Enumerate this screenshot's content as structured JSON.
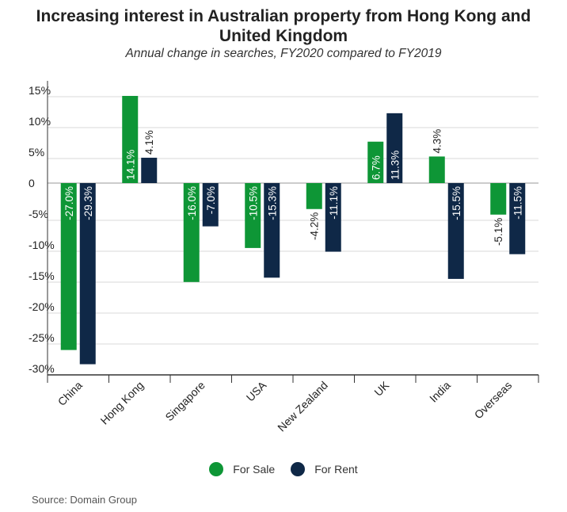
{
  "title_line1": "Increasing interest in Australian property from Hong Kong and",
  "title_line2": "United Kingdom",
  "subtitle": "Annual change in searches, FY2020 compared to FY2019",
  "source": "Source: Domain Group",
  "colors": {
    "for_sale": "#0e9636",
    "for_rent": "#0f2847",
    "grid": "#d9d9d9",
    "axis": "#333333"
  },
  "chart_data": {
    "type": "bar",
    "title": "Increasing interest in Australian property from Hong Kong and United Kingdom",
    "subtitle": "Annual change in searches, FY2020 compared to FY2019",
    "categories": [
      "China",
      "Hong Kong",
      "Singapore",
      "USA",
      "New Zealand",
      "UK",
      "India",
      "Overseas"
    ],
    "series": [
      {
        "name": "For Sale",
        "values": [
          -27.0,
          14.1,
          -16.0,
          -10.5,
          -4.2,
          6.7,
          4.3,
          -5.1
        ],
        "labels": [
          "-27.0%",
          "14.1%",
          "-16.0%",
          "-10.5%",
          "-4.2%",
          "6.7%",
          "4.3%",
          "-5.1%"
        ]
      },
      {
        "name": "For Rent",
        "values": [
          -29.3,
          4.1,
          -7.0,
          -15.3,
          -11.1,
          11.3,
          -15.5,
          -11.5
        ],
        "labels": [
          "-29.3%",
          "4.1%",
          "-7.0%",
          "-15.3%",
          "-11.1%",
          "11.3%",
          "-15.5%",
          "-11.5%"
        ]
      }
    ],
    "yticks": [
      15,
      10,
      5,
      0,
      -5,
      -10,
      -15,
      -20,
      -25,
      -30
    ],
    "ytick_labels": [
      "15%",
      "10%",
      "5%",
      "0",
      "-5%",
      "-10%",
      "-15%",
      "-20%",
      "-25%",
      "-30%"
    ],
    "ylim": [
      -30,
      15
    ],
    "grid": true,
    "legend_position": "bottom"
  }
}
